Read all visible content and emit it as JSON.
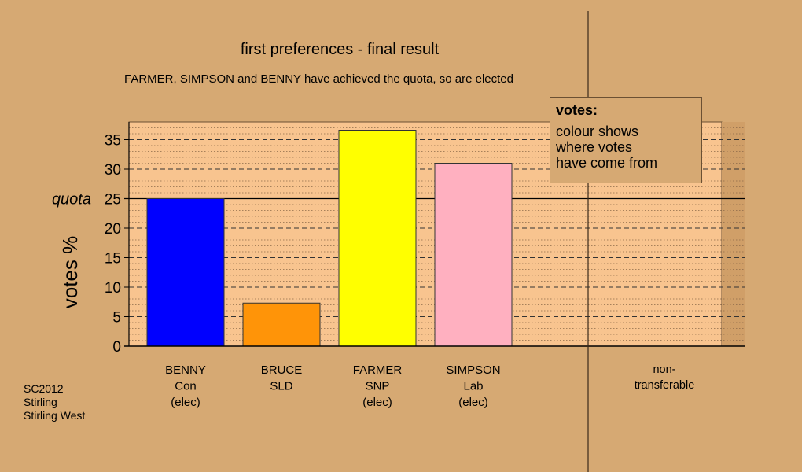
{
  "chart_data": {
    "type": "bar",
    "title": "first preferences - final result",
    "subtitle": "FARMER, SIMPSON and BENNY have achieved the quota, so are elected",
    "ylabel": "votes %",
    "ylim": [
      0,
      38
    ],
    "yticks": [
      "0",
      "5",
      "10",
      "15",
      "20",
      "25",
      "30",
      "35"
    ],
    "quota": {
      "label": "quota",
      "value": 25
    },
    "categories": [
      {
        "lines": [
          "BENNY",
          "Con",
          "(elec)"
        ],
        "value": 25.0,
        "color": "#0000ff"
      },
      {
        "lines": [
          "BRUCE",
          "SLD"
        ],
        "value": 7.3,
        "color": "#ff9408"
      },
      {
        "lines": [
          "FARMER",
          "SNP",
          "(elec)"
        ],
        "value": 36.6,
        "color": "#ffff00"
      },
      {
        "lines": [
          "SIMPSON",
          "Lab",
          "(elec)"
        ],
        "value": 31.0,
        "color": "#ffb0c0"
      }
    ],
    "nontransferable": {
      "lines": [
        "non-",
        "transferable"
      ],
      "value": 0
    },
    "grid": true,
    "colors": {
      "background": "#d6a973",
      "plot_area": "#f8c48f",
      "axis": "#000000"
    }
  },
  "legend": {
    "title": "votes:",
    "lines": [
      "colour shows",
      "where votes",
      "have come from"
    ]
  },
  "source": [
    "SC2012",
    "Stirling",
    "Stirling West"
  ]
}
